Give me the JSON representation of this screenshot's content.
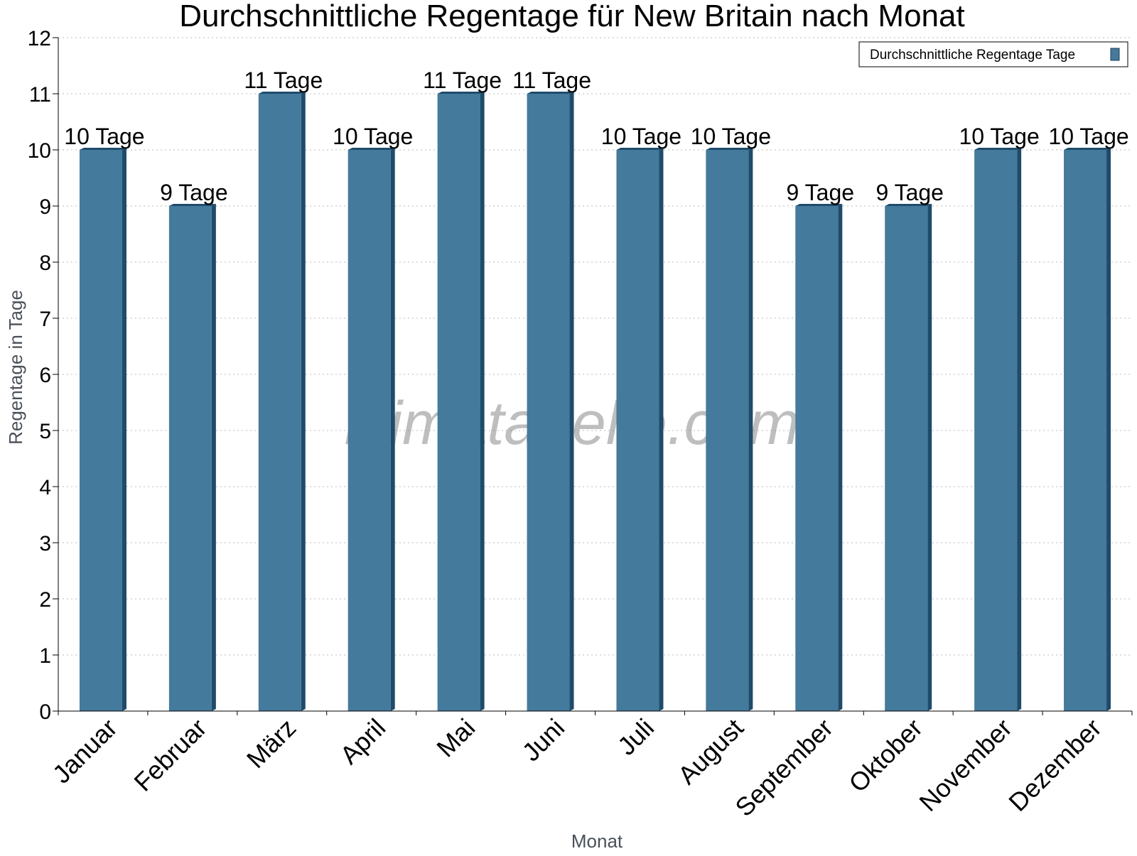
{
  "chart_data": {
    "type": "bar",
    "title": "Durchschnittliche Regentage für New Britain nach Monat",
    "xlabel": "Monat",
    "ylabel": "Regentage in Tage",
    "categories": [
      "Januar",
      "Februar",
      "März",
      "April",
      "Mai",
      "Juni",
      "Juli",
      "August",
      "September",
      "Oktober",
      "November",
      "Dezember"
    ],
    "series": [
      {
        "name": "Durchschnittliche Regentage Tage",
        "values": [
          10,
          9,
          11,
          10,
          11,
          11,
          10,
          10,
          9,
          9,
          10,
          10
        ],
        "labels": [
          "10 Tage",
          "9 Tage",
          "11 Tage",
          "10 Tage",
          "11 Tage",
          "11 Tage",
          "10 Tage",
          "10 Tage",
          "9 Tage",
          "9 Tage",
          "10 Tage",
          "10 Tage"
        ],
        "color": "#447a9c"
      }
    ],
    "ylim": [
      0,
      12
    ],
    "yticks": [
      0,
      1,
      2,
      3,
      4,
      5,
      6,
      7,
      8,
      9,
      10,
      11,
      12
    ],
    "grid": true,
    "legend_position": "top-right",
    "watermark": "klimatabelle.com"
  }
}
